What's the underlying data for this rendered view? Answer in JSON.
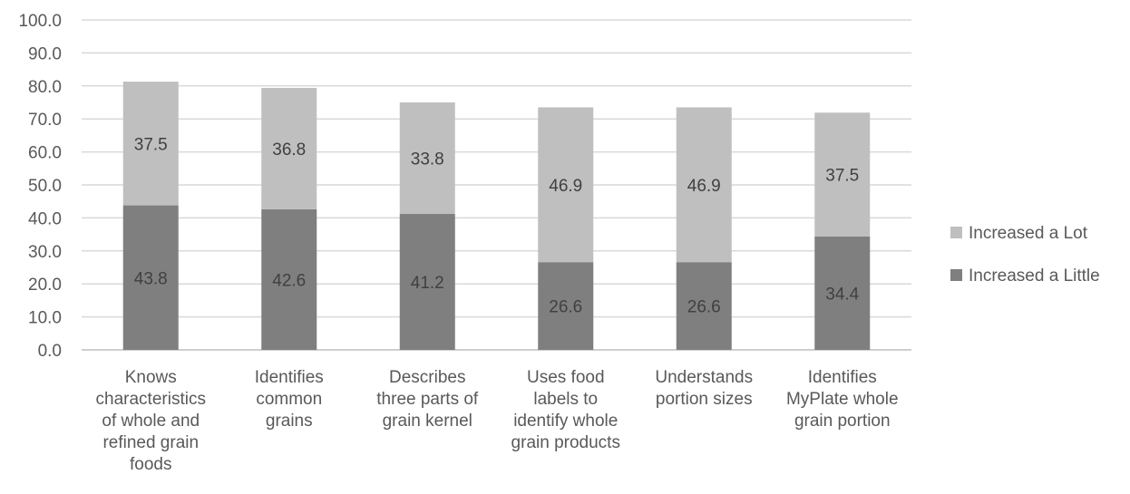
{
  "chart_data": {
    "type": "bar",
    "stacked": true,
    "categories": [
      [
        "Knows",
        "characteristics",
        "of whole and",
        "refined grain",
        "foods"
      ],
      [
        "Identifies",
        "common",
        "grains"
      ],
      [
        "Describes",
        "three parts of",
        "grain kernel"
      ],
      [
        "Uses food",
        "labels to",
        "identify whole",
        "grain products"
      ],
      [
        "Understands",
        "portion sizes"
      ],
      [
        "Identifies",
        "MyPlate whole",
        "grain portion"
      ]
    ],
    "series": [
      {
        "name": "Increased a Little",
        "color": "#7f7f7f",
        "values": [
          43.8,
          42.6,
          41.2,
          26.6,
          26.6,
          34.4
        ],
        "labels": [
          "43.8",
          "42.6",
          "41.2",
          "26.6",
          "26.6",
          "34.4"
        ]
      },
      {
        "name": "Increased a Lot",
        "color": "#bfbfbf",
        "values": [
          37.5,
          36.8,
          33.8,
          46.9,
          46.9,
          37.5
        ],
        "labels": [
          "37.5",
          "36.8",
          "33.8",
          "46.9",
          "46.9",
          "37.5"
        ]
      }
    ],
    "yticks": [
      "0.0",
      "10.0",
      "20.0",
      "30.0",
      "40.0",
      "50.0",
      "60.0",
      "70.0",
      "80.0",
      "90.0",
      "100.0"
    ],
    "ylim": [
      0,
      100
    ],
    "grid": true,
    "gridColor": "#d9d9d9",
    "legend": {
      "position": "right",
      "order": [
        "Increased a Lot",
        "Increased a Little"
      ]
    }
  }
}
